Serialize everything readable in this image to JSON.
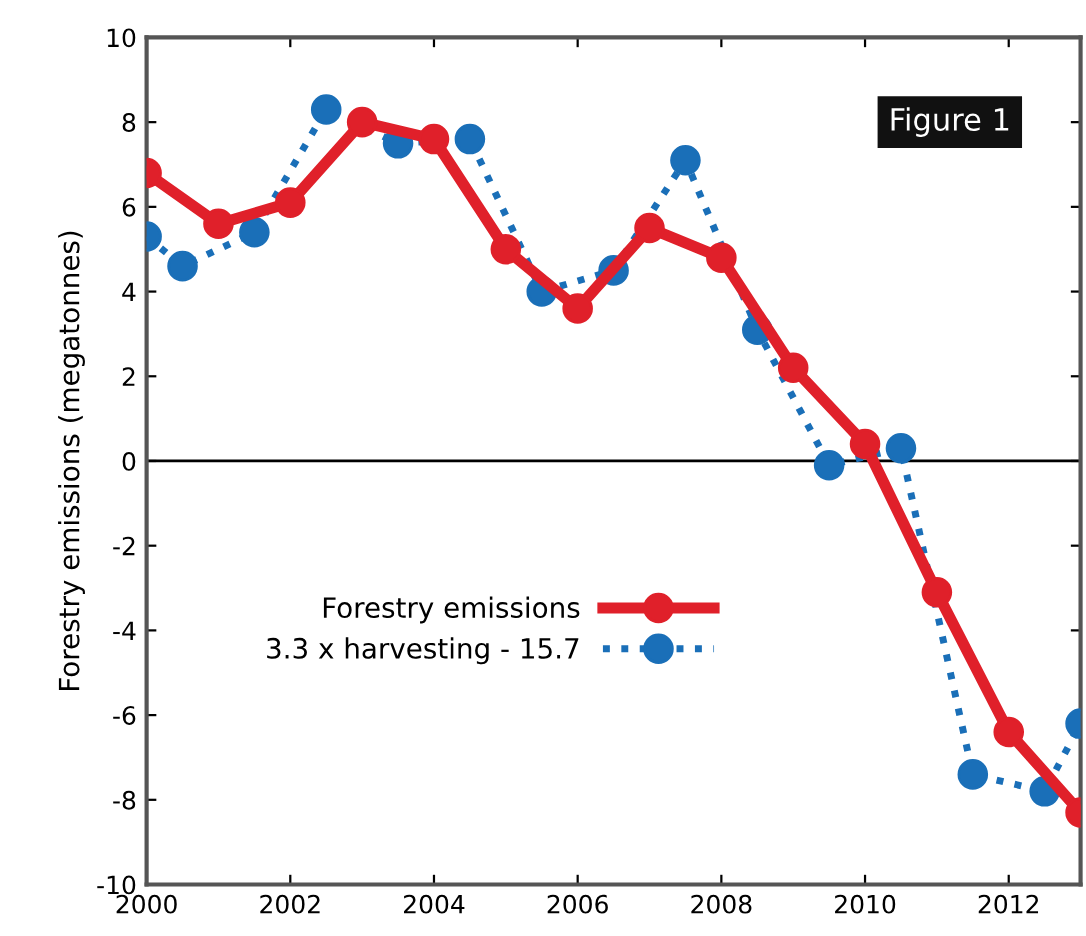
{
  "chart_data": {
    "type": "line",
    "ylabel": "Forestry emissions (megatonnes)",
    "annotations": [
      "Figure 1"
    ],
    "xlim": [
      2000,
      2013
    ],
    "xticks": [
      2000,
      2002,
      2004,
      2006,
      2008,
      2010,
      2012
    ],
    "ylim": [
      -10,
      10
    ],
    "yticks": [
      -10,
      -8,
      -6,
      -4,
      -2,
      0,
      2,
      4,
      6,
      8,
      10
    ],
    "grid": false,
    "legend": "left",
    "marker": "circle",
    "ref_lines": [
      {
        "axis": "y",
        "value": 0,
        "color": "#000000"
      }
    ],
    "series": [
      {
        "name": "Forestry emissions",
        "color": "#e0202a",
        "line_style": "solid",
        "x": [
          2000,
          2001,
          2002,
          2003,
          2004,
          2005,
          2006,
          2007,
          2008,
          2009,
          2010,
          2011,
          2012,
          2013
        ],
        "values": [
          6.8,
          5.6,
          6.1,
          8.0,
          7.6,
          5.0,
          3.6,
          5.5,
          4.8,
          2.2,
          0.4,
          -3.1,
          -6.4,
          -8.3
        ]
      },
      {
        "name": "3.3 x harvesting - 15.7",
        "color": "#1a6fb8",
        "line_style": "dotted",
        "x": [
          2000,
          2000.5,
          2001.5,
          2002.5,
          2003.5,
          2004.5,
          2005.5,
          2006.5,
          2007.5,
          2008.5,
          2009.5,
          2010.5,
          2011.5,
          2012.5,
          2013
        ],
        "values": [
          5.3,
          4.6,
          5.4,
          8.3,
          7.5,
          7.6,
          4.0,
          4.5,
          7.1,
          3.1,
          -0.1,
          0.3,
          -7.4,
          -7.8,
          -6.2
        ]
      }
    ]
  }
}
